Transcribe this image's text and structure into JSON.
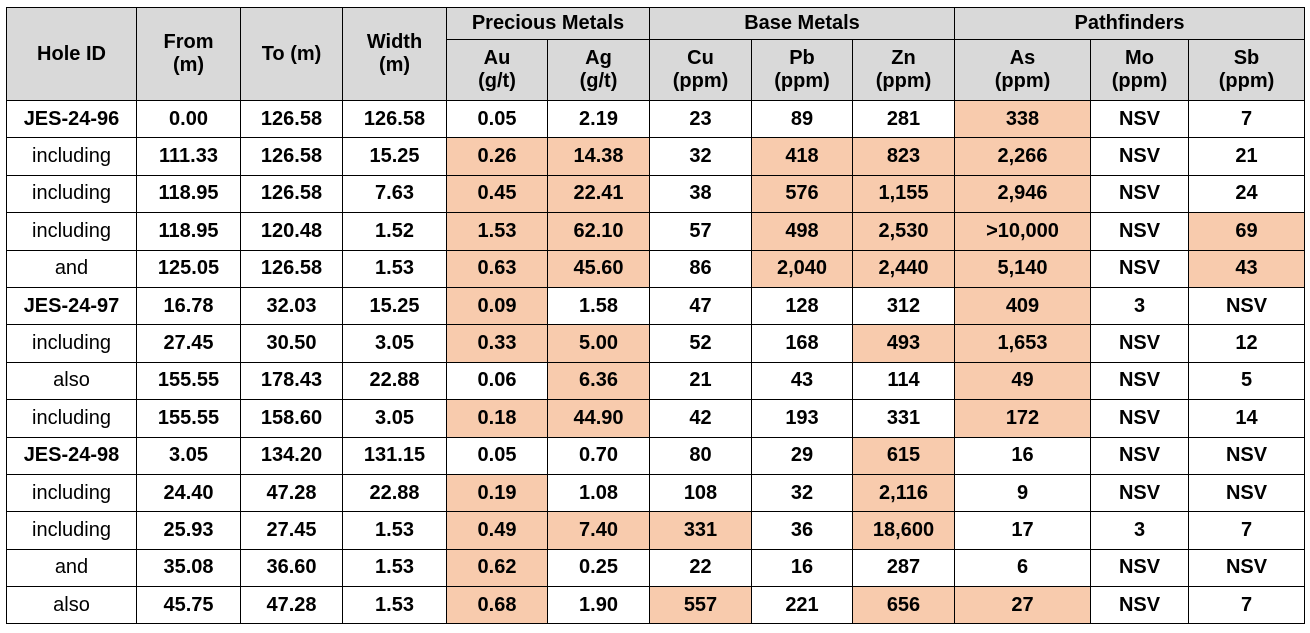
{
  "table": {
    "group_headers": [
      {
        "label": "Precious Metals",
        "span": 2
      },
      {
        "label": "Base Metals",
        "span": 3
      },
      {
        "label": "Pathfinders",
        "span": 3
      }
    ],
    "fixed_headers": {
      "hole_id": "Hole ID",
      "from": [
        "From",
        "(m)"
      ],
      "to": "To (m)",
      "width": [
        "Width",
        "(m)"
      ]
    },
    "element_headers": [
      {
        "name": "Au",
        "unit": "(g/t)"
      },
      {
        "name": "Ag",
        "unit": "(g/t)"
      },
      {
        "name": "Cu",
        "unit": "(ppm)"
      },
      {
        "name": "Pb",
        "unit": "(ppm)"
      },
      {
        "name": "Zn",
        "unit": "(ppm)"
      },
      {
        "name": "As",
        "unit": "(ppm)"
      },
      {
        "name": "Mo",
        "unit": "(ppm)"
      },
      {
        "name": "Sb",
        "unit": "(ppm)"
      }
    ],
    "highlight_color": "#f8cbad",
    "header_color": "#d9d9d9",
    "rows": [
      {
        "label": "JES-24-96",
        "is_hole": true,
        "cells": [
          "0.00",
          "126.58",
          "126.58",
          "0.05",
          "2.19",
          "23",
          "89",
          "281",
          "338",
          "NSV",
          "7"
        ],
        "hl": [
          8
        ]
      },
      {
        "label": "including",
        "is_hole": false,
        "cells": [
          "111.33",
          "126.58",
          "15.25",
          "0.26",
          "14.38",
          "32",
          "418",
          "823",
          "2,266",
          "NSV",
          "21"
        ],
        "hl": [
          3,
          4,
          6,
          7,
          8
        ]
      },
      {
        "label": "including",
        "is_hole": false,
        "cells": [
          "118.95",
          "126.58",
          "7.63",
          "0.45",
          "22.41",
          "38",
          "576",
          "1,155",
          "2,946",
          "NSV",
          "24"
        ],
        "hl": [
          3,
          4,
          6,
          7,
          8
        ]
      },
      {
        "label": "including",
        "is_hole": false,
        "cells": [
          "118.95",
          "120.48",
          "1.52",
          "1.53",
          "62.10",
          "57",
          "498",
          "2,530",
          ">10,000",
          "NSV",
          "69"
        ],
        "hl": [
          3,
          4,
          6,
          7,
          8,
          10
        ]
      },
      {
        "label": "and",
        "is_hole": false,
        "cells": [
          "125.05",
          "126.58",
          "1.53",
          "0.63",
          "45.60",
          "86",
          "2,040",
          "2,440",
          "5,140",
          "NSV",
          "43"
        ],
        "hl": [
          3,
          4,
          6,
          7,
          8,
          10
        ]
      },
      {
        "label": "JES-24-97",
        "is_hole": true,
        "cells": [
          "16.78",
          "32.03",
          "15.25",
          "0.09",
          "1.58",
          "47",
          "128",
          "312",
          "409",
          "3",
          "NSV"
        ],
        "hl": [
          3,
          8
        ]
      },
      {
        "label": "including",
        "is_hole": false,
        "cells": [
          "27.45",
          "30.50",
          "3.05",
          "0.33",
          "5.00",
          "52",
          "168",
          "493",
          "1,653",
          "NSV",
          "12"
        ],
        "hl": [
          3,
          4,
          7,
          8
        ]
      },
      {
        "label": "also",
        "is_hole": false,
        "cells": [
          "155.55",
          "178.43",
          "22.88",
          "0.06",
          "6.36",
          "21",
          "43",
          "114",
          "49",
          "NSV",
          "5"
        ],
        "hl": [
          4,
          8
        ]
      },
      {
        "label": "including",
        "is_hole": false,
        "cells": [
          "155.55",
          "158.60",
          "3.05",
          "0.18",
          "44.90",
          "42",
          "193",
          "331",
          "172",
          "NSV",
          "14"
        ],
        "hl": [
          3,
          4,
          8
        ]
      },
      {
        "label": "JES-24-98",
        "is_hole": true,
        "cells": [
          "3.05",
          "134.20",
          "131.15",
          "0.05",
          "0.70",
          "80",
          "29",
          "615",
          "16",
          "NSV",
          "NSV"
        ],
        "hl": [
          7
        ]
      },
      {
        "label": "including",
        "is_hole": false,
        "cells": [
          "24.40",
          "47.28",
          "22.88",
          "0.19",
          "1.08",
          "108",
          "32",
          "2,116",
          "9",
          "NSV",
          "NSV"
        ],
        "hl": [
          3,
          7
        ]
      },
      {
        "label": "including",
        "is_hole": false,
        "cells": [
          "25.93",
          "27.45",
          "1.53",
          "0.49",
          "7.40",
          "331",
          "36",
          "18,600",
          "17",
          "3",
          "7"
        ],
        "hl": [
          3,
          4,
          5,
          7
        ]
      },
      {
        "label": "and",
        "is_hole": false,
        "cells": [
          "35.08",
          "36.60",
          "1.53",
          "0.62",
          "0.25",
          "22",
          "16",
          "287",
          "6",
          "NSV",
          "NSV"
        ],
        "hl": [
          3
        ]
      },
      {
        "label": "also",
        "is_hole": false,
        "cells": [
          "45.75",
          "47.28",
          "1.53",
          "0.68",
          "1.90",
          "557",
          "221",
          "656",
          "27",
          "NSV",
          "7"
        ],
        "hl": [
          3,
          5,
          7,
          8
        ]
      }
    ]
  }
}
